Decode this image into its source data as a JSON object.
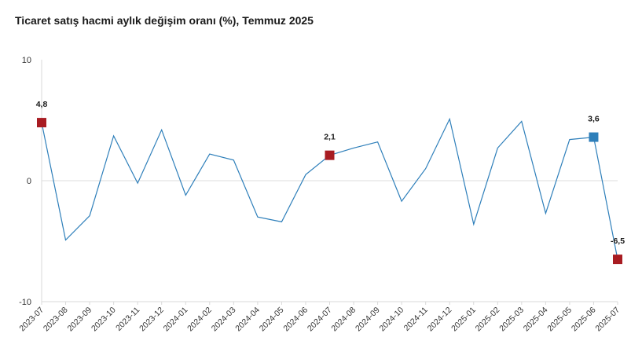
{
  "chart_data": {
    "type": "line",
    "title": "Ticaret satış hacmi aylık değişim oranı (%), Temmuz 2025",
    "xlabel": "",
    "ylabel": "",
    "ylim": [
      -10,
      10
    ],
    "yticks": [
      "10",
      "0",
      "-10"
    ],
    "ytick_values": [
      10,
      0,
      -10
    ],
    "categories": [
      "2023-07",
      "2023-08",
      "2023-09",
      "2023-10",
      "2023-11",
      "2023-12",
      "2024-01",
      "2024-02",
      "2024-03",
      "2024-04",
      "2024-05",
      "2024-06",
      "2024-07",
      "2024-08",
      "2024-09",
      "2024-10",
      "2024-11",
      "2024-12",
      "2025-01",
      "2025-02",
      "2025-03",
      "2025-04",
      "2025-05",
      "2025-06",
      "2025-07"
    ],
    "series": [
      {
        "values": [
          4.8,
          -4.9,
          -2.9,
          3.7,
          -0.2,
          4.2,
          -1.2,
          2.2,
          1.7,
          -3.0,
          -3.4,
          0.5,
          2.1,
          2.7,
          3.2,
          -1.7,
          1.0,
          5.1,
          -3.6,
          2.7,
          4.9,
          -2.7,
          3.4,
          3.6,
          -6.5
        ]
      }
    ],
    "highlights": [
      {
        "index": 0,
        "label": "4,8",
        "color": "#a81c22"
      },
      {
        "index": 12,
        "label": "2,1",
        "color": "#a81c22"
      },
      {
        "index": 23,
        "label": "3,6",
        "color": "#2e7fba"
      },
      {
        "index": 24,
        "label": "-6,5",
        "color": "#a81c22"
      }
    ],
    "line_color": "#2e7fba",
    "grid": "zero-line only",
    "legend": "none"
  }
}
